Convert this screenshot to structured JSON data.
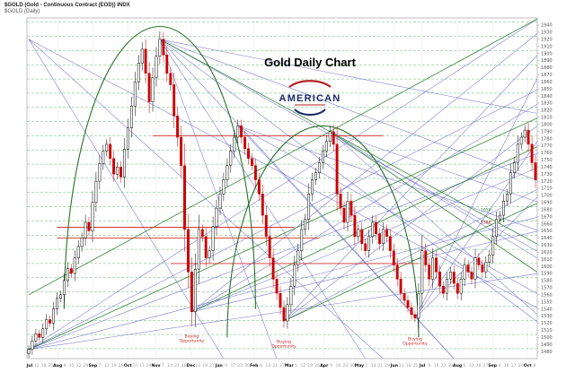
{
  "header": {
    "line1": "$GOLD (Gold - Continuous Contract (EOD)) INDX",
    "line2": "$GOLD (Daily)"
  },
  "logo": {
    "text": "AMERICAN"
  },
  "chart_data": {
    "type": "candlestick",
    "title": "Gold Daily Chart",
    "xlabel": "",
    "ylabel": "",
    "y_axis": {
      "min": 1470,
      "max": 1950,
      "tick_step": 10
    },
    "x_labels": [
      "Jul",
      "12",
      "18",
      "25",
      "Aug",
      "8",
      "15",
      "22",
      "29",
      "Sep",
      "7",
      "12",
      "19",
      "26",
      "Oct",
      "10",
      "17",
      "24",
      "Nov",
      "7",
      "14",
      "21",
      "28",
      "Dec",
      "12",
      "19",
      "27",
      "Jan",
      "9",
      "17",
      "23",
      "30",
      "Feb",
      "6",
      "13",
      "21",
      "27",
      "Mar",
      "5",
      "12",
      "19",
      "26",
      "Apr",
      "9",
      "16",
      "23",
      "30",
      "May",
      "7",
      "14",
      "21",
      "29",
      "Jun",
      "11",
      "18",
      "25",
      "Jul",
      "9",
      "16",
      "23",
      "30",
      "Aug",
      "6",
      "13",
      "20",
      "27",
      "Sep",
      "4",
      "10",
      "17",
      "24",
      "Oct",
      "8"
    ],
    "closes": [
      1483,
      1495,
      1505,
      1500,
      1512,
      1525,
      1520,
      1540,
      1555,
      1560,
      1580,
      1597,
      1590,
      1612,
      1628,
      1640,
      1662,
      1650,
      1690,
      1720,
      1745,
      1762,
      1772,
      1752,
      1730,
      1740,
      1726,
      1765,
      1795,
      1826,
      1860,
      1886,
      1906,
      1872,
      1832,
      1866,
      1896,
      1920,
      1898,
      1872,
      1856,
      1812,
      1782,
      1742,
      1652,
      1592,
      1536,
      1596,
      1652,
      1642,
      1612,
      1622,
      1656,
      1682,
      1702,
      1722,
      1742,
      1762,
      1782,
      1798,
      1782,
      1766,
      1752,
      1742,
      1722,
      1702,
      1672,
      1642,
      1612,
      1582,
      1562,
      1542,
      1523,
      1546,
      1572,
      1602,
      1622,
      1652,
      1666,
      1702,
      1722,
      1732,
      1746,
      1762,
      1776,
      1790,
      1772,
      1702,
      1682,
      1662,
      1692,
      1672,
      1642,
      1652,
      1632,
      1622,
      1642,
      1662,
      1646,
      1632,
      1652,
      1642,
      1622,
      1602,
      1582,
      1562,
      1552,
      1542,
      1532,
      1527,
      1562,
      1622,
      1602,
      1582,
      1612,
      1592,
      1572,
      1562,
      1582,
      1592,
      1576,
      1562,
      1582,
      1602,
      1592,
      1582,
      1612,
      1602,
      1592,
      1606,
      1616,
      1642,
      1666,
      1672,
      1692,
      1702,
      1732,
      1746,
      1772,
      1782,
      1792,
      1772,
      1746,
      1722
    ],
    "green_dashed_levels": [
      1944,
      1924,
      1904,
      1884,
      1864,
      1844,
      1824,
      1804,
      1784,
      1764,
      1744,
      1724,
      1704,
      1684,
      1664,
      1644,
      1624,
      1604,
      1584,
      1564,
      1544,
      1524,
      1504,
      1484
    ],
    "red_segments": [
      {
        "price": 1784,
        "b1": 35,
        "b2": 100
      },
      {
        "price": 1655,
        "b1": 8,
        "b2": 75
      },
      {
        "price": 1640,
        "b1": 8,
        "b2": 82
      },
      {
        "price": 1604,
        "b1": 40,
        "b2": 110
      }
    ],
    "blue_fan_lines": [
      [
        37,
        1920,
        144,
        1815
      ],
      [
        37,
        1920,
        144,
        1720
      ],
      [
        37,
        1920,
        144,
        1620
      ],
      [
        37,
        1920,
        144,
        1520
      ],
      [
        37,
        1920,
        120,
        1470
      ],
      [
        37,
        1920,
        95,
        1470
      ],
      [
        37,
        1920,
        70,
        1470
      ],
      [
        0,
        1483,
        144,
        1950
      ],
      [
        0,
        1483,
        144,
        1850
      ],
      [
        0,
        1483,
        144,
        1760
      ],
      [
        0,
        1483,
        144,
        1670
      ],
      [
        0,
        1483,
        144,
        1590
      ],
      [
        46,
        1536,
        144,
        1930
      ],
      [
        46,
        1536,
        144,
        1830
      ],
      [
        46,
        1536,
        144,
        1740
      ],
      [
        46,
        1536,
        144,
        1650
      ],
      [
        72,
        1523,
        144,
        1900
      ],
      [
        72,
        1523,
        144,
        1800
      ],
      [
        72,
        1523,
        144,
        1710
      ],
      [
        109,
        1527,
        144,
        1870
      ],
      [
        109,
        1527,
        144,
        1780
      ],
      [
        109,
        1527,
        144,
        1700
      ],
      [
        85,
        1790,
        144,
        1690
      ],
      [
        85,
        1790,
        144,
        1610
      ],
      [
        85,
        1790,
        144,
        1530
      ],
      [
        59,
        1798,
        144,
        1650
      ],
      [
        59,
        1798,
        144,
        1560
      ],
      [
        59,
        1798,
        120,
        1470
      ],
      [
        0,
        1920,
        144,
        1540
      ],
      [
        0,
        1920,
        100,
        1470
      ],
      [
        0,
        1920,
        55,
        1470
      ]
    ],
    "green_trend_lines": [
      [
        0,
        1483,
        144,
        1810
      ],
      [
        46,
        1536,
        144,
        1770
      ],
      [
        72,
        1523,
        144,
        1690
      ],
      [
        0,
        1560,
        144,
        1950
      ],
      [
        37,
        1920,
        144,
        1630
      ],
      [
        85,
        1790,
        144,
        1590
      ]
    ],
    "arcs": [
      {
        "b1": 10,
        "b2": 64,
        "base": 1540,
        "apex": 1938
      },
      {
        "b1": 56,
        "b2": 110,
        "base": 1500,
        "apex": 1798
      }
    ],
    "annotations": [
      {
        "text": "Buying Opportunity",
        "bar": 46,
        "price": 1500,
        "color": "#cc2222"
      },
      {
        "text": "Buying Opportunity",
        "bar": 72,
        "price": 1492,
        "color": "#cc2222"
      },
      {
        "text": "Buying Opportunity",
        "bar": 109,
        "price": 1496,
        "color": "#cc2222"
      },
      {
        "text": "1650",
        "bar": 129,
        "price": 1678,
        "color": "#2e7d32"
      },
      {
        "text": "1588",
        "bar": 129,
        "price": 1660,
        "color": "#b22222"
      }
    ],
    "colors": {
      "up_candle": "#000000",
      "down_candle": "#cc0000",
      "blue_line": "#5555c8",
      "green_line": "#1e7a22",
      "dashed_level": "#44a048",
      "red_line": "#d02020",
      "arc": "#1e6b1e"
    }
  }
}
